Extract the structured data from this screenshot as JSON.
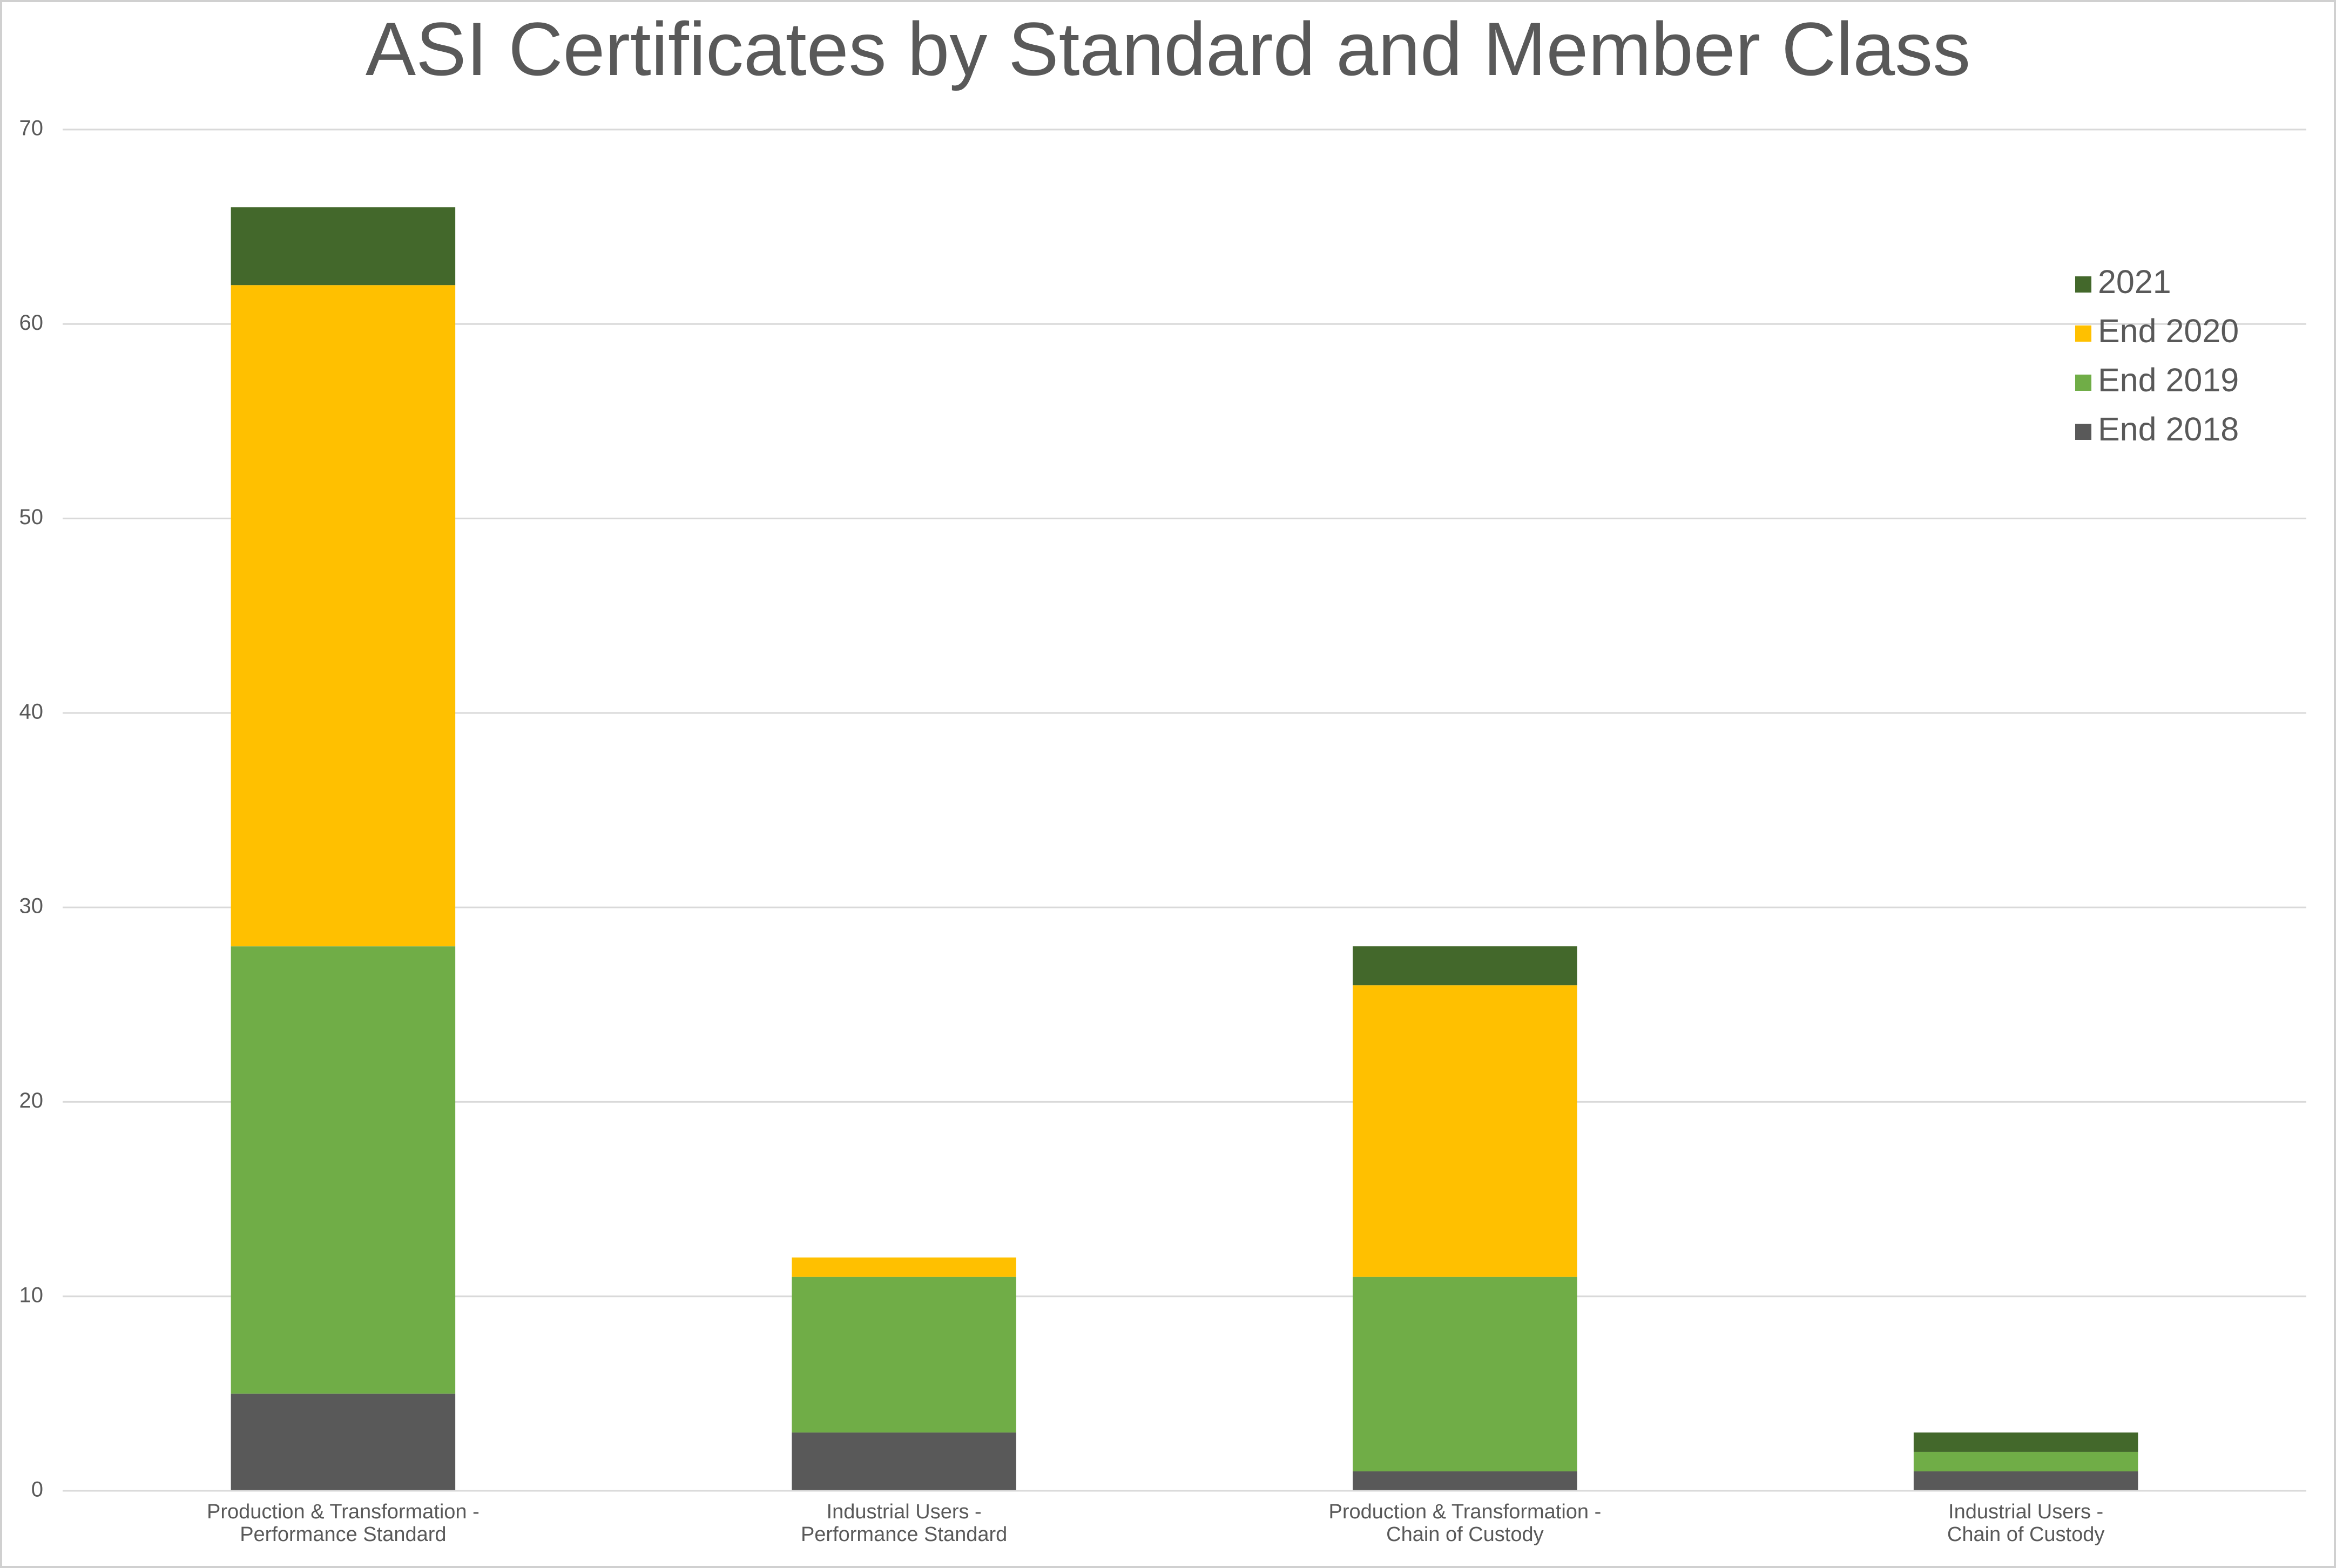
{
  "chart_data": {
    "type": "stacked_bar",
    "title": "ASI Certificates by Standard and Member Class",
    "categories": [
      "Production & Transformation -\nPerformance Standard",
      "Industrial Users -\nPerformance Standard",
      "Production & Transformation -\nChain of Custody",
      "Industrial Users -\nChain of Custody"
    ],
    "series": [
      {
        "name": "End 2018",
        "color": "#595959",
        "values": [
          5,
          3,
          1,
          1
        ]
      },
      {
        "name": "End 2019",
        "color": "#70ad47",
        "values": [
          23,
          8,
          10,
          1
        ]
      },
      {
        "name": "End 2020",
        "color": "#ffc000",
        "values": [
          34,
          1,
          15,
          0
        ]
      },
      {
        "name": "2021",
        "color": "#43682b",
        "values": [
          4,
          0,
          2,
          1
        ]
      }
    ],
    "ylim": [
      0,
      70
    ],
    "yticks": [
      0,
      10,
      20,
      30,
      40,
      50,
      60,
      70
    ],
    "grid": true,
    "legend": "upper right"
  }
}
